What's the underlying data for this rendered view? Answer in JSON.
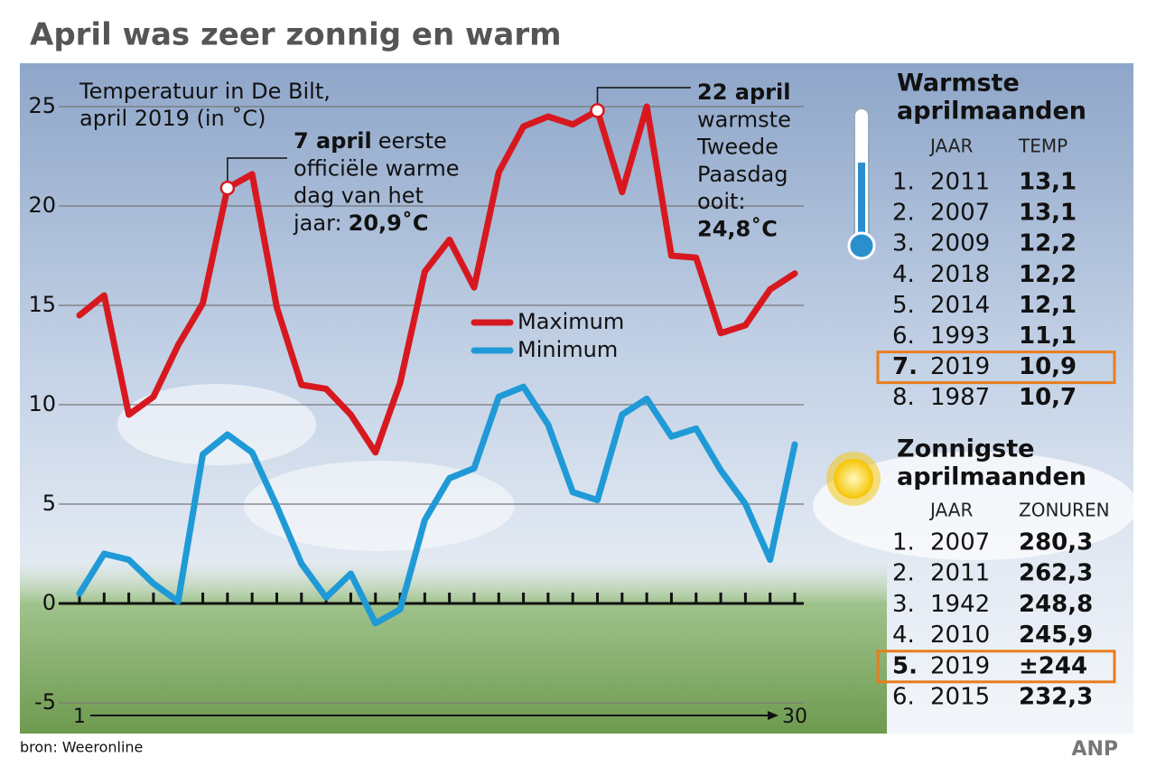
{
  "chart_data": {
    "type": "line",
    "title": "April was zeer zonnig en warm",
    "subtitle": [
      "Temperatuur in De Bilt,",
      "april 2019 (in ˚C)"
    ],
    "x": [
      1,
      2,
      3,
      4,
      5,
      6,
      7,
      8,
      9,
      10,
      11,
      12,
      13,
      14,
      15,
      16,
      17,
      18,
      19,
      20,
      21,
      22,
      23,
      24,
      25,
      26,
      27,
      28,
      29,
      30
    ],
    "xlim": [
      1,
      30
    ],
    "xticks": [
      1,
      30
    ],
    "ylim": [
      -5,
      25
    ],
    "yticks": [
      -5,
      0,
      5,
      10,
      15,
      20,
      25
    ],
    "grid": true,
    "legend": "center",
    "series": [
      {
        "name": "Maximum",
        "color": "#d7191f",
        "values": [
          14.5,
          15.5,
          9.5,
          10.4,
          13.0,
          15.1,
          20.9,
          21.6,
          14.9,
          11.0,
          10.8,
          9.5,
          7.6,
          11.1,
          16.7,
          18.3,
          15.9,
          21.7,
          24.0,
          24.5,
          24.1,
          24.8,
          20.7,
          25.0,
          17.5,
          17.4,
          13.6,
          14.0,
          15.8,
          16.6
        ]
      },
      {
        "name": "Minimum",
        "color": "#1f9ad6",
        "values": [
          0.5,
          2.5,
          2.2,
          1.0,
          0.1,
          7.5,
          8.5,
          7.6,
          4.9,
          2.0,
          0.3,
          1.5,
          -1.0,
          -0.3,
          4.2,
          6.3,
          6.8,
          10.4,
          10.9,
          9.0,
          5.6,
          5.2,
          9.5,
          10.3,
          8.4,
          8.8,
          6.7,
          5.0,
          2.2,
          8.0
        ]
      }
    ],
    "annotations": [
      {
        "x": 7,
        "y": 20.9,
        "lines": [
          [
            {
              "t": "7 april",
              "b": true
            },
            {
              "t": "eerste",
              "b": false
            }
          ],
          [
            {
              "t": "officiële warme",
              "b": false
            }
          ],
          [
            {
              "t": "dag van het",
              "b": false
            }
          ],
          [
            {
              "t": "jaar:",
              "b": false
            },
            {
              "t": "20,9˚C",
              "b": true
            }
          ]
        ]
      },
      {
        "x": 22,
        "y": 24.8,
        "lines": [
          [
            {
              "t": "22 april",
              "b": true
            }
          ],
          [
            {
              "t": "warmste",
              "b": false
            }
          ],
          [
            {
              "t": "Tweede",
              "b": false
            }
          ],
          [
            {
              "t": "Paasdag",
              "b": false
            }
          ],
          [
            {
              "t": "ooit:",
              "b": false
            }
          ],
          [
            {
              "t": "24,8˚C",
              "b": true
            }
          ]
        ]
      }
    ]
  },
  "tables": [
    {
      "title": [
        "Warmste",
        "aprilmaanden"
      ],
      "header": [
        "JAAR",
        "TEMP"
      ],
      "highlight": 6,
      "rows": [
        [
          "1.",
          "2011",
          "13,1"
        ],
        [
          "2.",
          "2007",
          "13,1"
        ],
        [
          "3.",
          "2009",
          "12,2"
        ],
        [
          "4.",
          "2018",
          "12,2"
        ],
        [
          "5.",
          "2014",
          "12,1"
        ],
        [
          "6.",
          "1993",
          "11,1"
        ],
        [
          "7.",
          "2019",
          "10,9"
        ],
        [
          "8.",
          "1987",
          "10,7"
        ]
      ]
    },
    {
      "title": [
        "Zonnigste",
        "aprilmaanden"
      ],
      "header": [
        "JAAR",
        "ZONUREN"
      ],
      "highlight": 4,
      "rows": [
        [
          "1.",
          "2007",
          "280,3"
        ],
        [
          "2.",
          "2011",
          "262,3"
        ],
        [
          "3.",
          "1942",
          "248,8"
        ],
        [
          "4.",
          "2010",
          "245,9"
        ],
        [
          "5.",
          "2019",
          "±244"
        ],
        [
          "6.",
          "2015",
          "232,3"
        ]
      ]
    }
  ],
  "source": "bron: Weeronline",
  "logo": "ANP"
}
